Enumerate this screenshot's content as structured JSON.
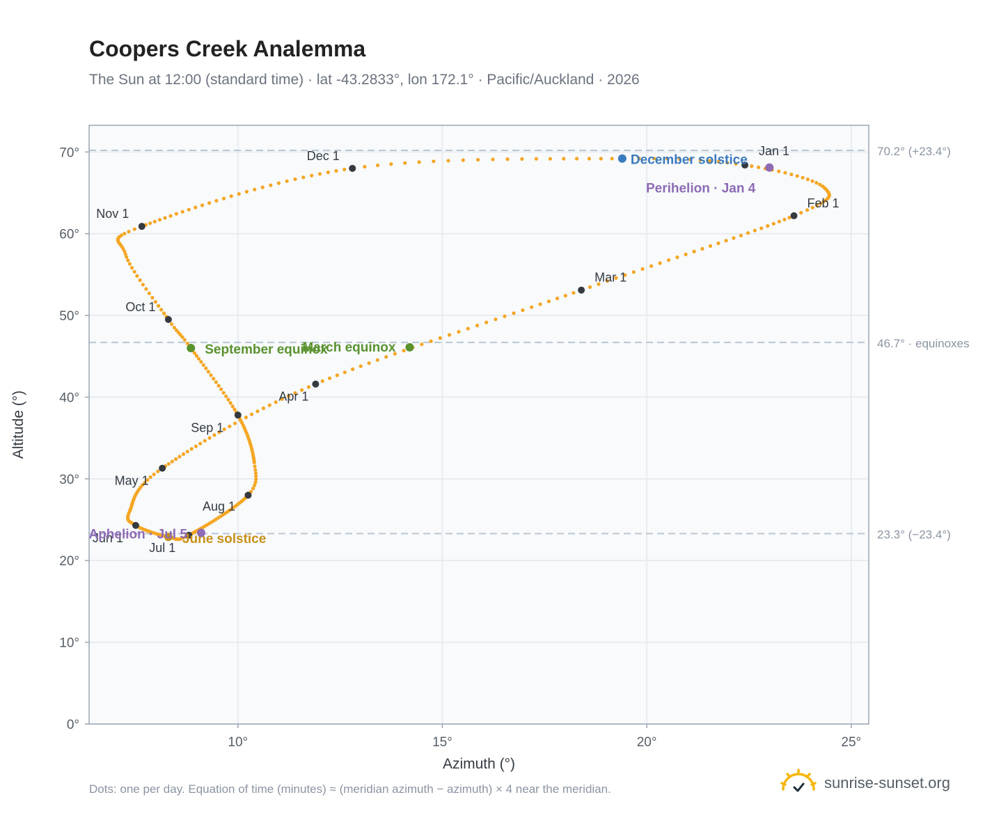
{
  "page": {
    "title": "Coopers Creek Analemma",
    "subtitle": "The Sun at 12:00 (standard time) · lat -43.2833°, lon 172.1° · Pacific/Auckland · 2026",
    "footnote": "Dots: one per day. Equation of time (minutes) ≈ (meridian azimuth − azimuth) × 4 near the meridian.",
    "brand": "sunrise-sunset.org",
    "brand_icon": "sun-logo-icon"
  },
  "chart_data": {
    "type": "scatter",
    "xlabel": "Azimuth (°)",
    "ylabel": "Altitude (°)",
    "xlim": [
      6.36,
      25.43
    ],
    "ylim": [
      0,
      70.2
    ],
    "x_ticks": [
      10,
      15,
      20,
      25
    ],
    "y_ticks": [
      0,
      10,
      20,
      30,
      40,
      50,
      60,
      70
    ],
    "grid": true,
    "colors": {
      "path": "#f5a623",
      "month": "#343a40",
      "solstice_dec": "#3a7abf",
      "solstice_jun": "#c8901a",
      "equinox": "#5a922e",
      "apsis": "#8e6bb5",
      "reference": "#b9c6d2",
      "plot_bg": "#f8fafc",
      "frame": "#9aa5b4"
    },
    "reference_lines": [
      {
        "y": 70.2,
        "label": "70.2° (+23.4°)"
      },
      {
        "y": 46.7,
        "label": "46.7° · equinoxes"
      },
      {
        "y": 23.3,
        "label": "23.3° (−23.4°)"
      }
    ],
    "month_markers": [
      {
        "label": "Jan 1",
        "x": 22.4,
        "y": 68.4
      },
      {
        "label": "Feb 1",
        "x": 23.6,
        "y": 62.2
      },
      {
        "label": "Mar 1",
        "x": 18.4,
        "y": 53.1
      },
      {
        "label": "Apr 1",
        "x": 11.9,
        "y": 41.6
      },
      {
        "label": "May 1",
        "x": 8.15,
        "y": 31.3
      },
      {
        "label": "Jun 1",
        "x": 7.5,
        "y": 24.3
      },
      {
        "label": "Jul 1",
        "x": 8.8,
        "y": 23.1
      },
      {
        "label": "Aug 1",
        "x": 10.25,
        "y": 28.0
      },
      {
        "label": "Sep 1",
        "x": 10.0,
        "y": 37.8
      },
      {
        "label": "Oct 1",
        "x": 8.3,
        "y": 49.5
      },
      {
        "label": "Nov 1",
        "x": 7.65,
        "y": 60.9
      },
      {
        "label": "Dec 1",
        "x": 12.8,
        "y": 68.0
      }
    ],
    "events": [
      {
        "label": "December solstice",
        "x": 19.4,
        "y": 69.2,
        "kind": "solstice_dec"
      },
      {
        "label": "June solstice",
        "x": 8.3,
        "y": 22.9,
        "kind": "solstice_jun"
      },
      {
        "label": "March equinox",
        "x": 14.2,
        "y": 46.1,
        "kind": "equinox"
      },
      {
        "label": "September equinox",
        "x": 8.85,
        "y": 46.0,
        "kind": "equinox"
      },
      {
        "label": "Perihelion · Jan 4",
        "x": 23.0,
        "y": 68.1,
        "kind": "apsis"
      },
      {
        "label": "Aphelion · Jul 5",
        "x": 9.1,
        "y": 23.4,
        "kind": "apsis"
      }
    ],
    "path_keypoints": [
      {
        "day": 0,
        "x": 22.4,
        "y": 68.4
      },
      {
        "day": 15,
        "x": 24.35,
        "y": 65.6
      },
      {
        "day": 31,
        "x": 23.6,
        "y": 62.2
      },
      {
        "day": 59,
        "x": 18.4,
        "y": 53.1
      },
      {
        "day": 90,
        "x": 11.9,
        "y": 41.6
      },
      {
        "day": 120,
        "x": 8.15,
        "y": 31.3
      },
      {
        "day": 140,
        "x": 7.35,
        "y": 26.0
      },
      {
        "day": 151,
        "x": 7.5,
        "y": 24.3
      },
      {
        "day": 170,
        "x": 8.3,
        "y": 22.9
      },
      {
        "day": 181,
        "x": 8.8,
        "y": 23.1
      },
      {
        "day": 212,
        "x": 10.25,
        "y": 28.0
      },
      {
        "day": 222,
        "x": 10.4,
        "y": 32.0
      },
      {
        "day": 243,
        "x": 10.0,
        "y": 37.8
      },
      {
        "day": 264,
        "x": 8.85,
        "y": 46.0
      },
      {
        "day": 273,
        "x": 8.3,
        "y": 49.5
      },
      {
        "day": 290,
        "x": 7.25,
        "y": 57.5
      },
      {
        "day": 304,
        "x": 7.65,
        "y": 60.9
      },
      {
        "day": 334,
        "x": 12.8,
        "y": 68.0
      },
      {
        "day": 354,
        "x": 19.4,
        "y": 69.2
      },
      {
        "day": 365,
        "x": 22.4,
        "y": 68.4
      }
    ]
  }
}
